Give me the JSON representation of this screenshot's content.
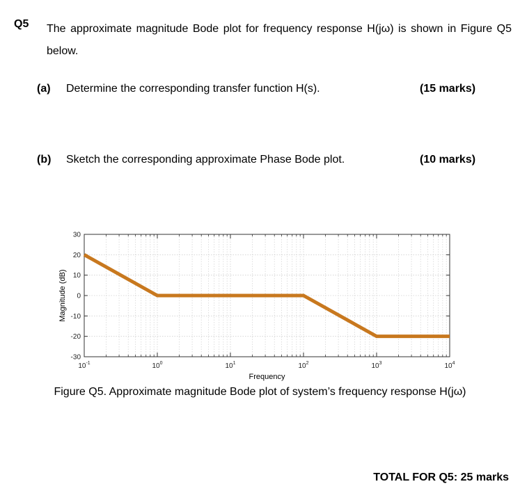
{
  "question": {
    "number": "Q5",
    "text": "The approximate magnitude Bode plot for frequency response H(jω) is shown in Figure Q5 below."
  },
  "parts": [
    {
      "label": "(a)",
      "text": "Determine the corresponding transfer function H(s).",
      "marks": "(15 marks)"
    },
    {
      "label": "(b)",
      "text": "Sketch the corresponding approximate Phase Bode plot.",
      "marks": "(10 marks)"
    }
  ],
  "figure": {
    "caption": "Figure Q5. Approximate magnitude Bode plot of system’s frequency response H(jω)"
  },
  "total": "TOTAL FOR Q5: 25 marks",
  "chart_data": {
    "type": "line",
    "title": "",
    "xlabel": "Frequency",
    "ylabel": "Magnitude (dB)",
    "xscale": "log",
    "xlim": [
      0.1,
      10000
    ],
    "ylim": [
      -30,
      30
    ],
    "x_ticks": [
      0.1,
      1,
      10,
      100,
      1000,
      10000
    ],
    "x_tick_labels": [
      {
        "base": "10",
        "exp": "-1"
      },
      {
        "base": "10",
        "exp": "0"
      },
      {
        "base": "10",
        "exp": "1"
      },
      {
        "base": "10",
        "exp": "2"
      },
      {
        "base": "10",
        "exp": "3"
      },
      {
        "base": "10",
        "exp": "4"
      }
    ],
    "y_ticks": [
      30,
      20,
      10,
      0,
      -10,
      -20,
      -30
    ],
    "grid": true,
    "series": [
      {
        "color": "#C8781E",
        "x": [
          0.1,
          1,
          100,
          1000,
          10000
        ],
        "y": [
          20,
          0,
          0,
          -20,
          -20
        ]
      }
    ]
  }
}
